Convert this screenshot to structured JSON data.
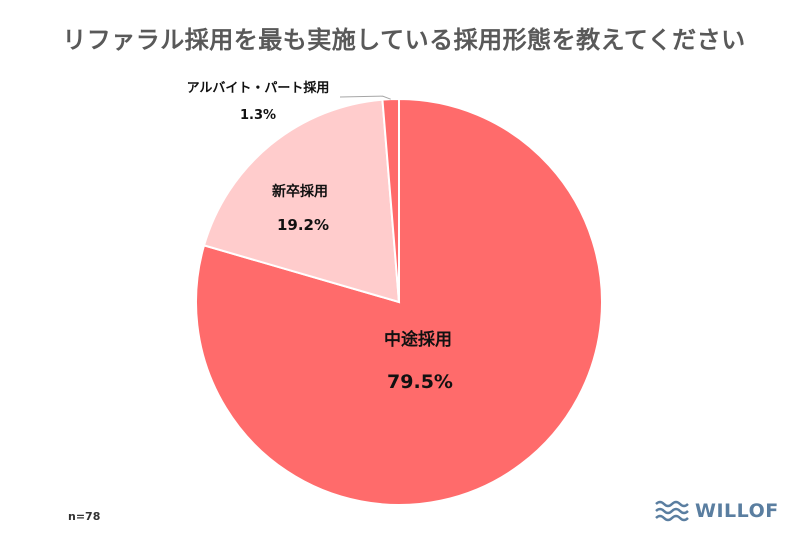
{
  "title": "リファラル採用を最も実施している採用形態を教えてください",
  "note": "n=78",
  "brand": {
    "name": "WILLOF",
    "icon": "waves-icon",
    "color": "#5a7ea0"
  },
  "chart_data": {
    "type": "pie",
    "title": "リファラル採用を最も実施している採用形態を教えてください",
    "slices": [
      {
        "label": "中途採用",
        "value": 79.5,
        "value_label": "79.5%",
        "color": "#ff6b6b"
      },
      {
        "label": "新卒採用",
        "value": 19.2,
        "value_label": "19.2%",
        "color": "#ffcccc"
      },
      {
        "label": "アルバイト・パート採用",
        "value": 1.3,
        "value_label": "1.3%",
        "color": "#ff6b6b"
      }
    ]
  }
}
